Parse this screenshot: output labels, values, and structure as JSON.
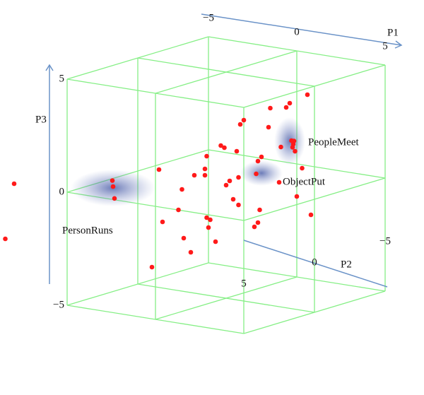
{
  "chart_data": {
    "type": "scatter3d",
    "xlabel": "P1",
    "ylabel": "P2",
    "zlabel": "P3",
    "xlim": [
      -5,
      5
    ],
    "ylim": [
      -5,
      5
    ],
    "zlim": [
      -5,
      5
    ],
    "xticks": [
      {
        "value": -5,
        "label": "−5"
      },
      0,
      5
    ],
    "yticks": [
      {
        "value": -5,
        "label": "−5"
      },
      0,
      5
    ],
    "zticks": [
      {
        "value": -5,
        "label": "−5"
      },
      0,
      5
    ],
    "annotations": [
      "PeopleMeet",
      "ObjectPut",
      "PersonRuns"
    ],
    "color": "#ff1a1a",
    "x": [
      0,
      1,
      -1,
      2,
      -2,
      0.5,
      1.5,
      -1,
      2.5,
      0,
      -0.5,
      1,
      3,
      -2.5,
      0.5,
      2,
      -1.5,
      1,
      3.5,
      -0.5,
      0,
      2,
      -3,
      1.5,
      -1,
      2.5,
      0,
      3,
      -2,
      1,
      -0.5,
      2,
      0.5,
      -1.5,
      4,
      1,
      -2,
      0,
      3,
      1.5,
      3,
      3.2,
      2.8,
      3.1,
      -4,
      -4.2,
      -3.6,
      -8,
      -8.5,
      -1,
      4
    ],
    "y": [
      0,
      -1,
      1,
      0,
      -1,
      2,
      1,
      -2,
      -1.5,
      -1,
      0.5,
      2,
      0,
      0,
      -2.5,
      2,
      1.5,
      0,
      -1,
      -0.5,
      2.5,
      -2,
      1,
      -0.5,
      0,
      1,
      -3,
      -2,
      2,
      1,
      -1.5,
      0.5,
      1,
      -0.5,
      0,
      -3,
      0.5,
      1.5,
      1.5,
      -2,
      -1,
      -0.8,
      -1.2,
      -1,
      3,
      2.8,
      3.4,
      5,
      5,
      4,
      -1
    ],
    "z": [
      0,
      1,
      0.5,
      1.5,
      0,
      -1,
      -0.5,
      1,
      2,
      2.5,
      -1.5,
      -2,
      0.5,
      -0.5,
      3,
      0,
      -1,
      3,
      1,
      1.5,
      -2.5,
      3.5,
      0.5,
      -1,
      -2,
      1,
      2,
      4,
      -1.5,
      0.5,
      0,
      -1.5,
      2,
      1,
      0,
      3,
      -2.5,
      1,
      -1,
      1.5,
      2,
      2.2,
      1.8,
      1.7,
      0,
      0.2,
      -0.4,
      0,
      -2.5,
      -3,
      -1
    ]
  }
}
